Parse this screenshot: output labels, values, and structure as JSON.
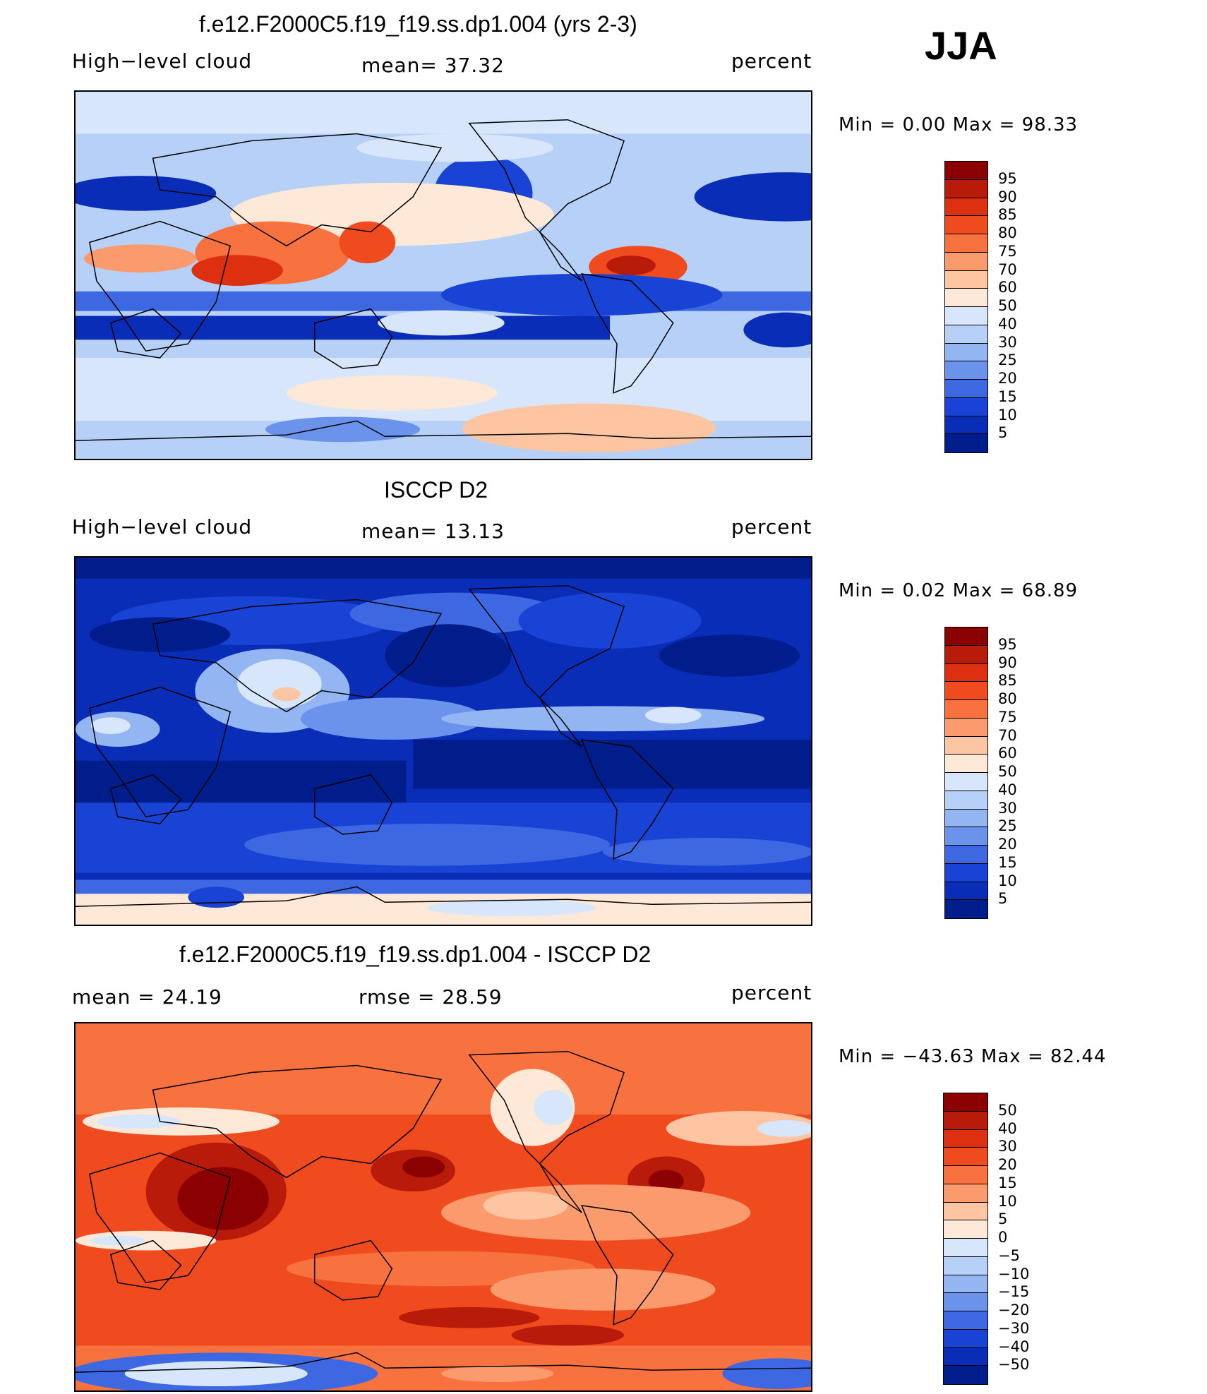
{
  "season": "JJA",
  "panels": [
    {
      "id": "model",
      "title": "f.e12.F2000C5.f19_f19.ss.dp1.004 (yrs 2-3)",
      "left_label": "High−level cloud",
      "center_label": "mean=   37.32",
      "right_label": "percent",
      "minmax": "Min =    0.00 Max =   98.33",
      "levels": [
        "95",
        "90",
        "85",
        "80",
        "75",
        "70",
        "60",
        "50",
        "40",
        "30",
        "25",
        "20",
        "15",
        "10",
        "5"
      ],
      "colors": [
        "#8b0000",
        "#b81b0a",
        "#dc3010",
        "#ef4b1e",
        "#f87240",
        "#fb9a6c",
        "#fdc5a2",
        "#fee9d8",
        "#d7e6fb",
        "#b7d0f7",
        "#93b6f3",
        "#6b93ec",
        "#3d68e2",
        "#1843d4",
        "#0a2db8",
        "#001d8c"
      ],
      "mean": 37.32,
      "min": 0.0,
      "max": 98.33
    },
    {
      "id": "obs",
      "title": "ISCCP D2",
      "left_label": "High−level cloud",
      "center_label": "mean=   13.13",
      "right_label": "percent",
      "minmax": "Min =    0.02 Max =   68.89",
      "levels": [
        "95",
        "90",
        "85",
        "80",
        "75",
        "70",
        "60",
        "50",
        "40",
        "30",
        "25",
        "20",
        "15",
        "10",
        "5"
      ],
      "colors": [
        "#8b0000",
        "#b81b0a",
        "#dc3010",
        "#ef4b1e",
        "#f87240",
        "#fb9a6c",
        "#fdc5a2",
        "#fee9d8",
        "#d7e6fb",
        "#b7d0f7",
        "#93b6f3",
        "#6b93ec",
        "#3d68e2",
        "#1843d4",
        "#0a2db8",
        "#001d8c"
      ],
      "mean": 13.13,
      "min": 0.02,
      "max": 68.89
    },
    {
      "id": "diff",
      "title": "f.e12.F2000C5.f19_f19.ss.dp1.004 - ISCCP D2",
      "left_label": "mean =   24.19",
      "center_label": "rmse =   28.59",
      "right_label": "percent",
      "minmax": "Min = −43.63 Max =   82.44",
      "levels": [
        "50",
        "40",
        "30",
        "20",
        "15",
        "10",
        "5",
        "0",
        "−5",
        "−10",
        "−15",
        "−20",
        "−30",
        "−40",
        "−50"
      ],
      "colors": [
        "#8b0000",
        "#b81b0a",
        "#dc3010",
        "#ef4b1e",
        "#f87240",
        "#fb9a6c",
        "#fdc5a2",
        "#fee9d8",
        "#d7e6fb",
        "#b7d0f7",
        "#93b6f3",
        "#6b93ec",
        "#3d68e2",
        "#1843d4",
        "#0a2db8",
        "#001d8c"
      ],
      "mean": 24.19,
      "rmse": 28.59,
      "min": -43.63,
      "max": 82.44
    }
  ]
}
